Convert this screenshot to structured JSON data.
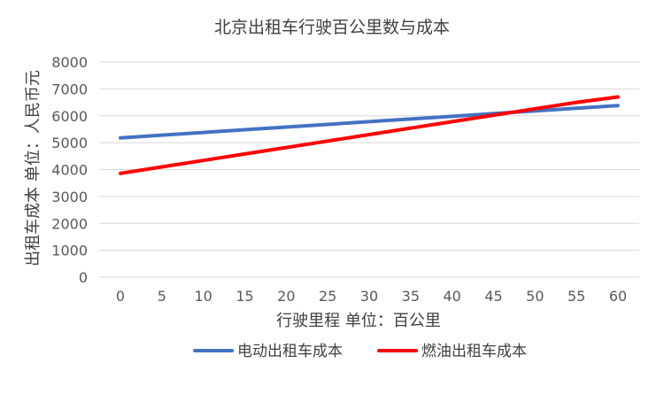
{
  "chart_data": {
    "type": "line",
    "title": "北京出租车行驶百公里数与成本",
    "xlabel": "行驶里程 单位：百公里",
    "ylabel": "出租车成本 单位：人民币元",
    "x": [
      0,
      5,
      10,
      15,
      20,
      25,
      30,
      35,
      40,
      45,
      50,
      55,
      60
    ],
    "ylim": [
      0,
      8000
    ],
    "yticks": [
      0,
      1000,
      2000,
      3000,
      4000,
      5000,
      6000,
      7000,
      8000
    ],
    "grid": true,
    "legend_position": "bottom",
    "series": [
      {
        "name": "电动出租车成本",
        "color": "#4472C4",
        "values": [
          5180,
          5280,
          5380,
          5480,
          5580,
          5680,
          5780,
          5880,
          5980,
          6080,
          6180,
          6280,
          6380
        ]
      },
      {
        "name": "燃油出租车成本",
        "color": "#FF0000",
        "values": [
          3860,
          4100,
          4340,
          4580,
          4820,
          5060,
          5300,
          5540,
          5780,
          6020,
          6260,
          6500,
          6700
        ]
      }
    ]
  }
}
